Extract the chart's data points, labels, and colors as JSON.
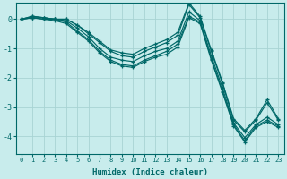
{
  "xlabel": "Humidex (Indice chaleur)",
  "background_color": "#c8ecec",
  "grid_color": "#a8d4d4",
  "line_color": "#006868",
  "xlim": [
    -0.5,
    23.5
  ],
  "ylim": [
    -4.6,
    0.55
  ],
  "yticks": [
    0,
    -1,
    -2,
    -3,
    -4
  ],
  "xticks": [
    0,
    1,
    2,
    3,
    4,
    5,
    6,
    7,
    8,
    9,
    10,
    11,
    12,
    13,
    14,
    15,
    16,
    17,
    18,
    19,
    20,
    21,
    22,
    23
  ],
  "lines": [
    [
      0.0,
      0.1,
      0.05,
      0.0,
      0.0,
      -0.2,
      -0.5,
      -0.8,
      -1.1,
      -1.25,
      -1.3,
      -1.1,
      -0.95,
      -0.8,
      -0.55,
      0.5,
      0.05,
      -1.1,
      -2.2,
      -3.45,
      -3.85,
      -3.45,
      -2.85,
      -3.45
    ],
    [
      0.0,
      0.05,
      0.05,
      0.0,
      -0.05,
      -0.3,
      -0.6,
      -1.0,
      -1.3,
      -1.4,
      -1.45,
      -1.25,
      -1.1,
      -1.0,
      -0.75,
      0.25,
      -0.05,
      -1.25,
      -2.35,
      -3.55,
      -4.05,
      -3.6,
      -3.35,
      -3.6
    ],
    [
      0.0,
      0.05,
      0.0,
      0.0,
      -0.1,
      -0.4,
      -0.7,
      -1.1,
      -1.4,
      -1.55,
      -1.6,
      -1.4,
      -1.25,
      -1.1,
      -0.85,
      0.1,
      -0.1,
      -1.35,
      -2.45,
      -3.6,
      -4.15,
      -3.65,
      -3.45,
      -3.65
    ],
    [
      0.0,
      0.1,
      0.05,
      0.0,
      0.0,
      -0.2,
      -0.45,
      -0.75,
      -1.05,
      -1.15,
      -1.2,
      -1.0,
      -0.85,
      -0.7,
      -0.45,
      0.55,
      0.1,
      -1.05,
      -2.15,
      -3.4,
      -3.8,
      -3.4,
      -2.75,
      -3.4
    ],
    [
      0.0,
      0.05,
      0.0,
      -0.05,
      -0.15,
      -0.45,
      -0.75,
      -1.15,
      -1.45,
      -1.6,
      -1.65,
      -1.45,
      -1.3,
      -1.2,
      -0.95,
      0.05,
      -0.15,
      -1.4,
      -2.5,
      -3.65,
      -4.2,
      -3.7,
      -3.5,
      -3.7
    ]
  ]
}
